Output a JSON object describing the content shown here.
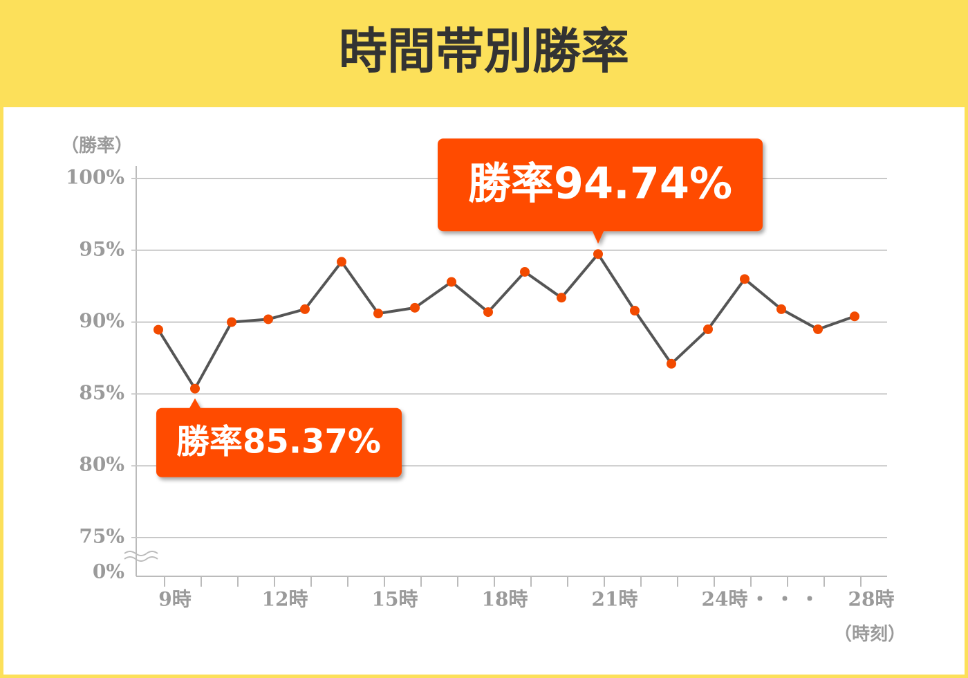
{
  "chart_data": {
    "type": "line",
    "title": "時間帯別勝率",
    "y_label": "（勝率）",
    "x_label": "（時刻）",
    "x_ellipsis": "・・・",
    "categories": [
      "9時",
      null,
      null,
      "12時",
      null,
      null,
      "15時",
      null,
      null,
      "18時",
      null,
      null,
      "21時",
      null,
      null,
      "24時",
      null,
      null,
      null,
      "28時"
    ],
    "series": [
      {
        "name": "勝率",
        "color": "#555555",
        "marker_color": "#f24a00",
        "values": [
          89.47,
          85.37,
          90.0,
          90.2,
          90.9,
          94.2,
          90.6,
          91.0,
          92.8,
          90.7,
          93.5,
          91.7,
          94.74,
          90.8,
          87.1,
          89.5,
          93.0,
          90.9,
          89.5,
          90.4
        ]
      }
    ],
    "ylim": [
      0,
      100
    ],
    "axis_break": true,
    "yticks": [
      {
        "value": 0,
        "label": "0%"
      },
      {
        "value": 75,
        "label": "75%"
      },
      {
        "value": 80,
        "label": "80%"
      },
      {
        "value": 85,
        "label": "85%"
      },
      {
        "value": 90,
        "label": "90%"
      },
      {
        "value": 95,
        "label": "95%"
      },
      {
        "value": 100,
        "label": "100%"
      }
    ],
    "grid": true,
    "annotations": [
      {
        "text": "勝率85.37%",
        "target": "min"
      },
      {
        "text": "勝率94.74%",
        "target": "max"
      }
    ]
  }
}
